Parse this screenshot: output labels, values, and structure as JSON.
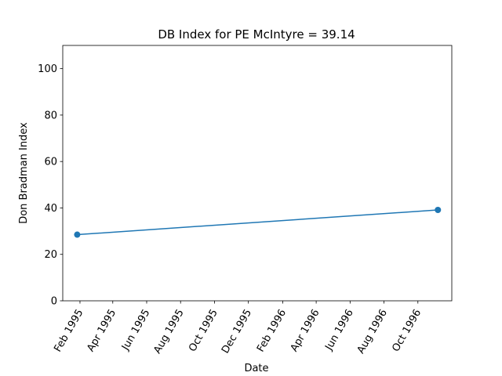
{
  "chart_data": {
    "type": "line",
    "title": "DB Index for PE McIntyre = 39.14",
    "xlabel": "Date",
    "ylabel": "Don Bradman Index",
    "xlim": [
      "1995-01-01",
      "1996-12-01"
    ],
    "ylim": [
      0,
      110
    ],
    "x_ticks": [
      {
        "date": "1995-02-01",
        "label": "Feb 1995"
      },
      {
        "date": "1995-04-01",
        "label": "Apr 1995"
      },
      {
        "date": "1995-06-01",
        "label": "Jun 1995"
      },
      {
        "date": "1995-08-01",
        "label": "Aug 1995"
      },
      {
        "date": "1995-10-01",
        "label": "Oct 1995"
      },
      {
        "date": "1995-12-01",
        "label": "Dec 1995"
      },
      {
        "date": "1996-02-01",
        "label": "Feb 1996"
      },
      {
        "date": "1996-04-01",
        "label": "Apr 1996"
      },
      {
        "date": "1996-06-01",
        "label": "Jun 1996"
      },
      {
        "date": "1996-08-01",
        "label": "Aug 1996"
      },
      {
        "date": "1996-10-01",
        "label": "Oct 1996"
      }
    ],
    "y_ticks": [
      0,
      20,
      40,
      60,
      80,
      100
    ],
    "grid": false,
    "series": [
      {
        "color": "#1f77b4",
        "marker": "circle",
        "points": [
          {
            "x": "1995-01-27",
            "y": 28.5
          },
          {
            "x": "1996-11-06",
            "y": 39.14
          }
        ]
      }
    ]
  }
}
